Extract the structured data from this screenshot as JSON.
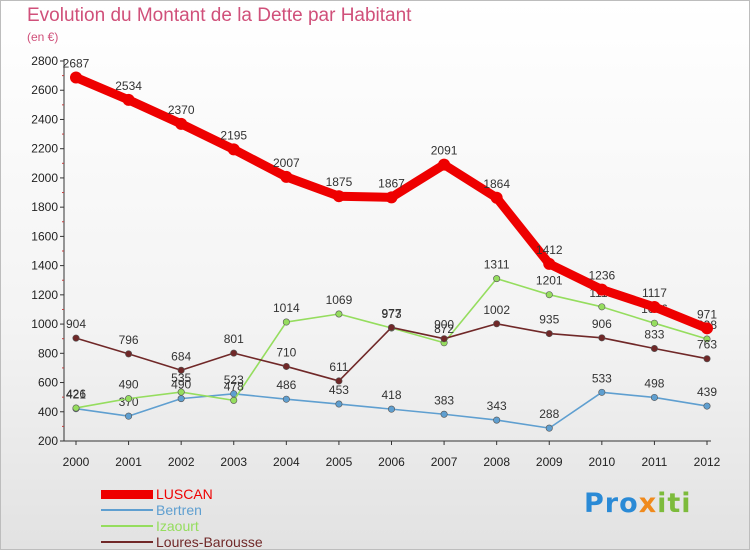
{
  "chart_data": {
    "type": "line",
    "title": "Evolution du Montant de la Dette par Habitant",
    "subtitle": "(en €)",
    "x": [
      "2000",
      "2001",
      "2002",
      "2003",
      "2004",
      "2005",
      "2006",
      "2007",
      "2008",
      "2009",
      "2010",
      "2011",
      "2012"
    ],
    "ylim": [
      200,
      2800
    ],
    "yticks": [
      200,
      400,
      600,
      800,
      1000,
      1200,
      1400,
      1600,
      1800,
      2000,
      2200,
      2400,
      2600,
      2800
    ],
    "grid": false,
    "legend_position": "bottom-left",
    "series": [
      {
        "name": "LUSCAN",
        "color": "#ee0000",
        "emphasis": true,
        "values": [
          2687,
          2534,
          2370,
          2195,
          2007,
          1875,
          1867,
          2091,
          1864,
          1412,
          1236,
          1117,
          971
        ]
      },
      {
        "name": "Bertren",
        "color": "#5f9fd0",
        "emphasis": false,
        "values": [
          421,
          370,
          490,
          523,
          486,
          453,
          418,
          383,
          343,
          288,
          533,
          498,
          439
        ]
      },
      {
        "name": "Izaourt",
        "color": "#95dd5e",
        "emphasis": false,
        "values": [
          426,
          490,
          535,
          478,
          1014,
          1069,
          973,
          872,
          1311,
          1201,
          1118,
          1006,
          898
        ]
      },
      {
        "name": "Loures-Barousse",
        "color": "#702828",
        "emphasis": false,
        "values": [
          904,
          796,
          684,
          801,
          710,
          611,
          977,
          900,
          1002,
          935,
          906,
          833,
          763
        ]
      }
    ]
  },
  "legend": [
    "LUSCAN",
    "Bertren",
    "Izaourt",
    "Loures-Barousse"
  ],
  "logo": {
    "letters": [
      {
        "ch": "P",
        "color": "#2a8ad6"
      },
      {
        "ch": "r",
        "color": "#2a8ad6"
      },
      {
        "ch": "o",
        "color": "#2a8ad6"
      },
      {
        "ch": "x",
        "color": "#f08a1c"
      },
      {
        "ch": "i",
        "color": "#7dbb3c"
      },
      {
        "ch": "t",
        "color": "#7dbb3c"
      },
      {
        "ch": "i",
        "color": "#7dbb3c"
      }
    ]
  }
}
